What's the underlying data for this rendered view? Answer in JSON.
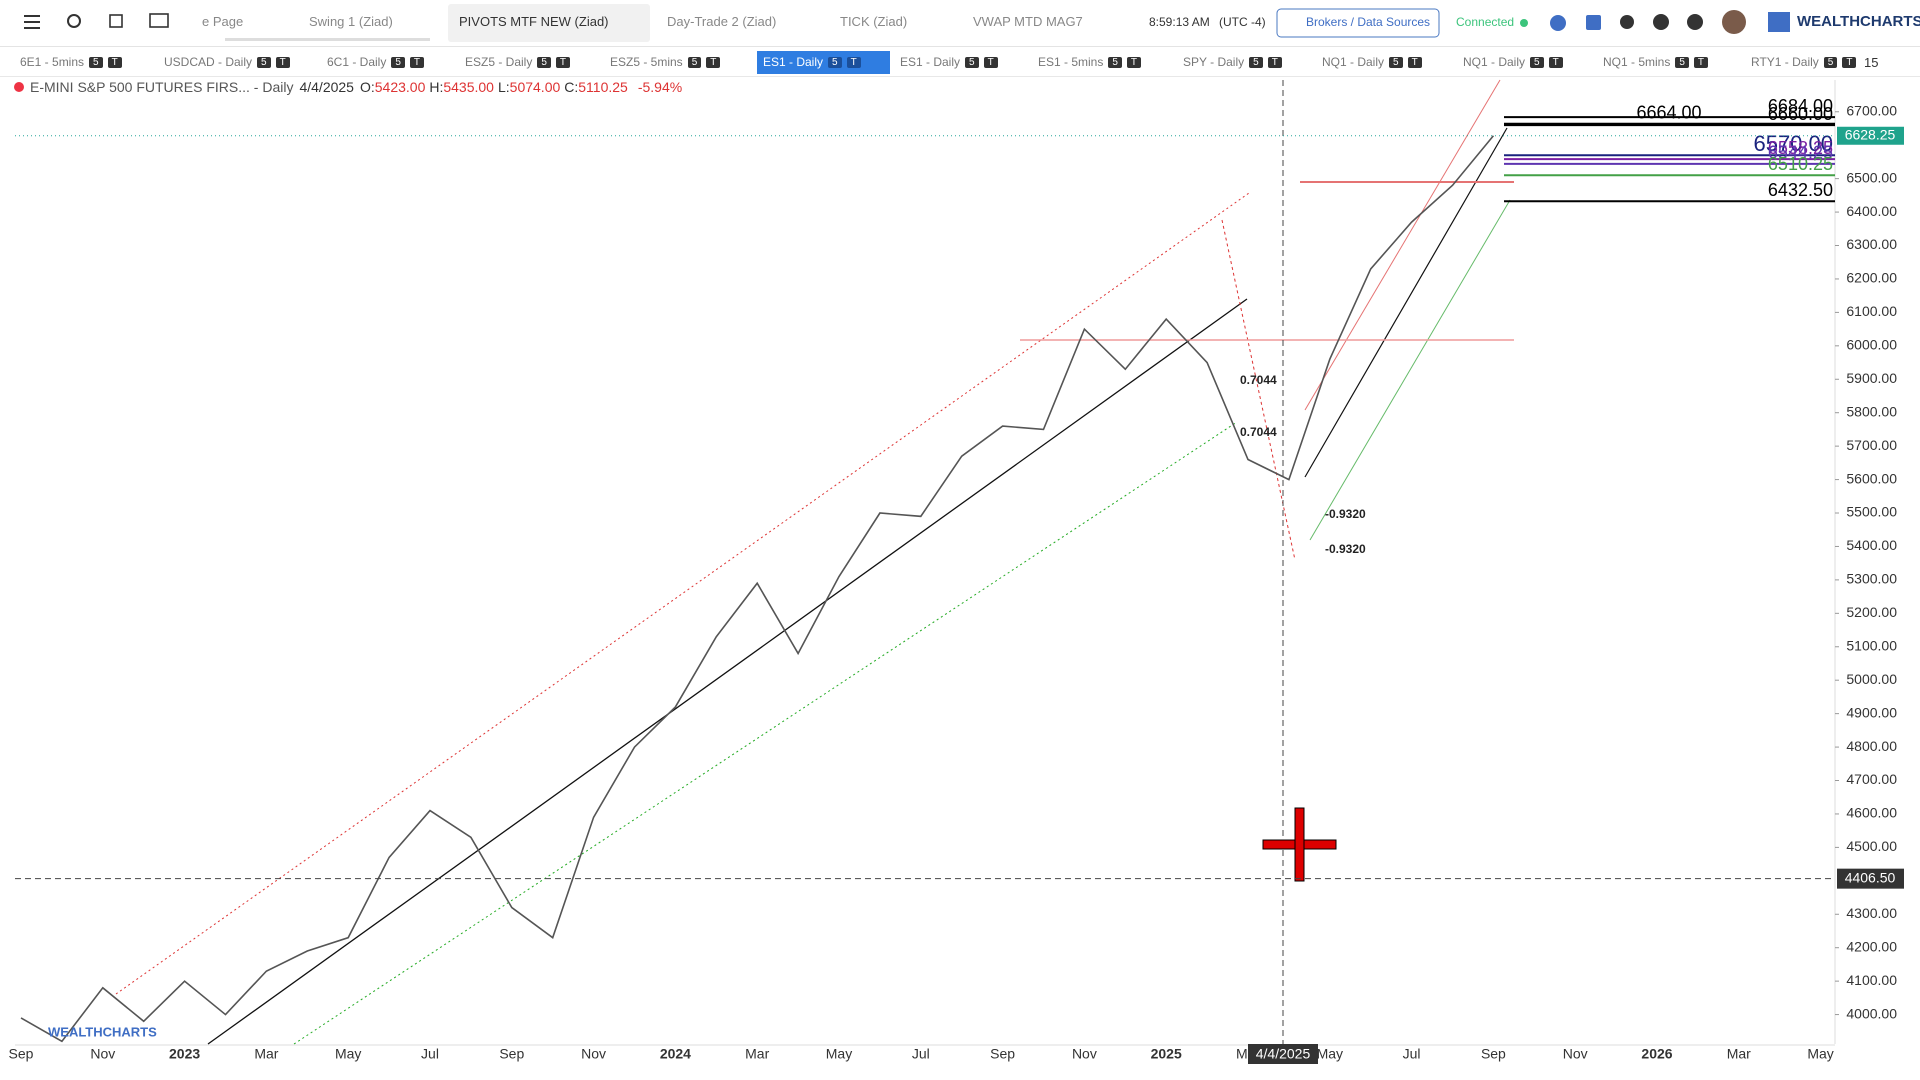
{
  "toolbar": {
    "tabs": [
      "e Page",
      "Swing 1 (Ziad)",
      "PIVOTS MTF NEW (Ziad)",
      "Day-Trade 2 (Ziad)",
      "TICK (Ziad)",
      "VWAP MTD MAG7"
    ],
    "active_tab": 2,
    "time": "8:59:13 AM",
    "timezone": "(UTC -4)",
    "brokers": "Brokers / Data Sources",
    "status": "Connected",
    "brand": "WEALTHCHARTS"
  },
  "symbols": {
    "items": [
      "6E1 - 5mins",
      "USDCAD - Daily",
      "6C1 - Daily",
      "ESZ5 - Daily",
      "ESZ5 - 5mins",
      "ES1 - Daily",
      "ES1 - Daily",
      "ES1 - 5mins",
      "SPY - Daily",
      "NQ1 - Daily",
      "NQ1 - Daily",
      "NQ1 - 5mins",
      "RTY1 - Daily"
    ],
    "active": 5,
    "badges": [
      "5",
      "T"
    ],
    "more": "15"
  },
  "chart_data": {
    "type": "line",
    "title": "E-MINI S&P 500 FUTURES FIRS... - Daily",
    "date": "4/4/2025",
    "ohlc": [
      {
        "label": "O:",
        "value": "5423.00"
      },
      {
        "label": "H:",
        "value": "5435.00"
      },
      {
        "label": "L:",
        "value": "5074.00"
      },
      {
        "label": "C:",
        "value": "5110.25"
      }
    ],
    "change": "-5.94%",
    "values": [
      3990,
      3920,
      4080,
      3980,
      4100,
      4000,
      4130,
      4190,
      4230,
      4470,
      4610,
      4530,
      4320,
      4230,
      4590,
      4800,
      4920,
      5130,
      5290,
      5080,
      5310,
      5500,
      5490,
      5670,
      5760,
      5750,
      6050,
      5930,
      6080,
      5950,
      5660,
      5600,
      5960,
      6230,
      6370,
      6480,
      6628.25
    ],
    "color": "#555555",
    "time_labels": [
      "Sep",
      "Nov",
      "2023",
      "Mar",
      "May",
      "Jul",
      "Sep",
      "Nov",
      "2024",
      "Mar",
      "May",
      "Jul",
      "Sep",
      "Nov",
      "2025",
      "Mar",
      "May",
      "Jul",
      "Sep",
      "Nov",
      "2026",
      "Mar",
      "May"
    ],
    "ylim": [
      3912,
      6795
    ],
    "yticks": [
      {
        "value": 4000,
        "label": "4000.00"
      },
      {
        "value": 4100,
        "label": "4100.00"
      },
      {
        "value": 4200,
        "label": "4200.00"
      },
      {
        "value": 4300,
        "label": "4300.00"
      },
      {
        "value": 4500,
        "label": "4500.00"
      },
      {
        "value": 4600,
        "label": "4600.00"
      },
      {
        "value": 4700,
        "label": "4700.00"
      },
      {
        "value": 4800,
        "label": "4800.00"
      },
      {
        "value": 4900,
        "label": "4900.00"
      },
      {
        "value": 5000,
        "label": "5000.00"
      },
      {
        "value": 5100,
        "label": "5100.00"
      },
      {
        "value": 5200,
        "label": "5200.00"
      },
      {
        "value": 5300,
        "label": "5300.00"
      },
      {
        "value": 5400,
        "label": "5400.00"
      },
      {
        "value": 5500,
        "label": "5500.00"
      },
      {
        "value": 5600,
        "label": "5600.00"
      },
      {
        "value": 5700,
        "label": "5700.00"
      },
      {
        "value": 5800,
        "label": "5800.00"
      },
      {
        "value": 5900,
        "label": "5900.00"
      },
      {
        "value": 6000,
        "label": "6000.00"
      },
      {
        "value": 6100,
        "label": "6100.00"
      },
      {
        "value": 6200,
        "label": "6200.00"
      },
      {
        "value": 6300,
        "label": "6300.00"
      },
      {
        "value": 6400,
        "label": "6400.00"
      },
      {
        "value": 6500,
        "label": "6500.00"
      },
      {
        "value": 6700,
        "label": "6700.00"
      }
    ],
    "levels": [
      {
        "value": 6684,
        "label": "6684.00",
        "color": "#000000"
      },
      {
        "value": 6660,
        "label": "6660.00",
        "color": "#000000"
      },
      {
        "value": 6664,
        "label": "6664.00",
        "color": "#000000"
      },
      {
        "value": 6570,
        "label": "6570.00",
        "color": "#1a237e"
      },
      {
        "value": 6558.25,
        "label": "6558.25",
        "color": "#7b1fa2"
      },
      {
        "value": 6544.25,
        "label": "6544.25",
        "color": "#5e35b1"
      },
      {
        "value": 6510.25,
        "label": "6510.25",
        "color": "#43a047"
      },
      {
        "value": 6432.5,
        "label": "6432.50",
        "color": "#000000"
      }
    ],
    "last": {
      "value": 6628.25,
      "label": "6628.25"
    },
    "crosshair": {
      "value": 4406.5,
      "label": "4406.50"
    },
    "annotations": [
      "0.7044",
      "0.7044",
      "-0.9320",
      "-0.9320"
    ]
  }
}
